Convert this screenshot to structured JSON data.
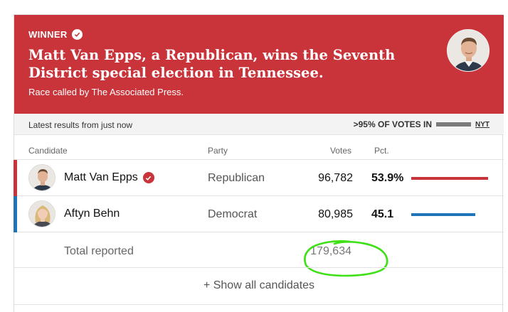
{
  "banner": {
    "winner_label": "WINNER",
    "headline": "Matt Van Epps, a Republican, wins the Seventh District special election in Tennessee.",
    "called_by": "Race called by The Associated Press.",
    "color": "#c8343a"
  },
  "status": {
    "latest": "Latest results from just now",
    "votes_in": ">95% OF VOTES IN",
    "source": "NYT"
  },
  "table": {
    "headers": {
      "candidate": "Candidate",
      "party": "Party",
      "votes": "Votes",
      "pct": "Pct."
    },
    "rows": [
      {
        "name": "Matt Van Epps",
        "party": "Republican",
        "votes": "96,782",
        "pct": "53.9%",
        "pct_value": 53.9,
        "color": "#c8343a",
        "winner": true
      },
      {
        "name": "Aftyn Behn",
        "party": "Democrat",
        "votes": "80,985",
        "pct": "45.1",
        "pct_value": 45.1,
        "color": "#1f73b7",
        "winner": false
      }
    ],
    "total_label": "Total reported",
    "total_votes": "179,634"
  },
  "show_all": "+ Show all candidates",
  "annotation_color": "#3fe016"
}
